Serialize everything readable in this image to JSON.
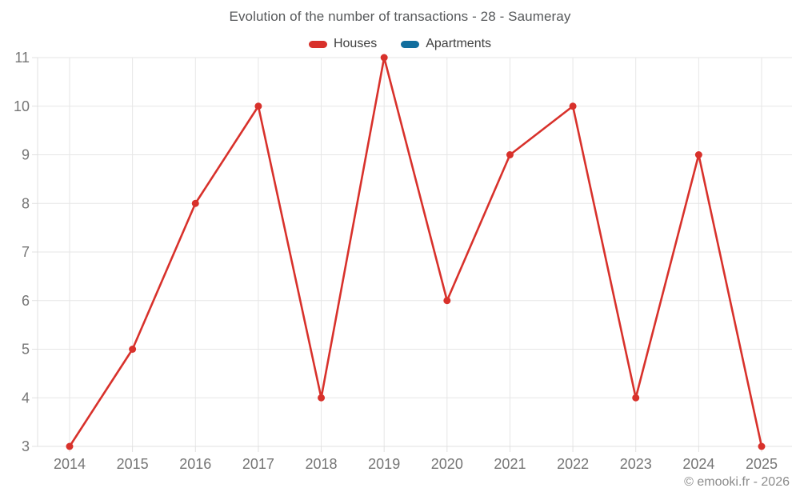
{
  "header": {
    "title": "Evolution of the number of transactions - 28 - Saumeray"
  },
  "legend": {
    "items": [
      {
        "label": "Houses",
        "color": "#d8312b"
      },
      {
        "label": "Apartments",
        "color": "#126e9e"
      }
    ]
  },
  "footer": {
    "watermark": "© emooki.fr - 2026"
  },
  "chart_data": {
    "type": "line",
    "title": "Evolution of the number of transactions - 28 - Saumeray",
    "x": [
      2014,
      2015,
      2016,
      2017,
      2018,
      2019,
      2020,
      2021,
      2022,
      2023,
      2024,
      2025
    ],
    "series": [
      {
        "name": "Houses",
        "color": "#d8312b",
        "values": [
          3,
          5,
          8,
          10,
          4,
          11,
          6,
          9,
          10,
          4,
          9,
          3
        ]
      },
      {
        "name": "Apartments",
        "color": "#126e9e",
        "values": []
      }
    ],
    "ylim": [
      3,
      11
    ],
    "ytick_step": 1,
    "grid": true,
    "legend_position": "top",
    "xlabel": "",
    "ylabel": ""
  },
  "style": {
    "background": "#ffffff",
    "grid_color": "#e6e6e6",
    "axis_line_color": "#e0e0e0",
    "axis_text_color": "#757575",
    "title_color": "#56585a",
    "legend_text_color": "#404040",
    "watermark_color": "#8b8b8b"
  }
}
